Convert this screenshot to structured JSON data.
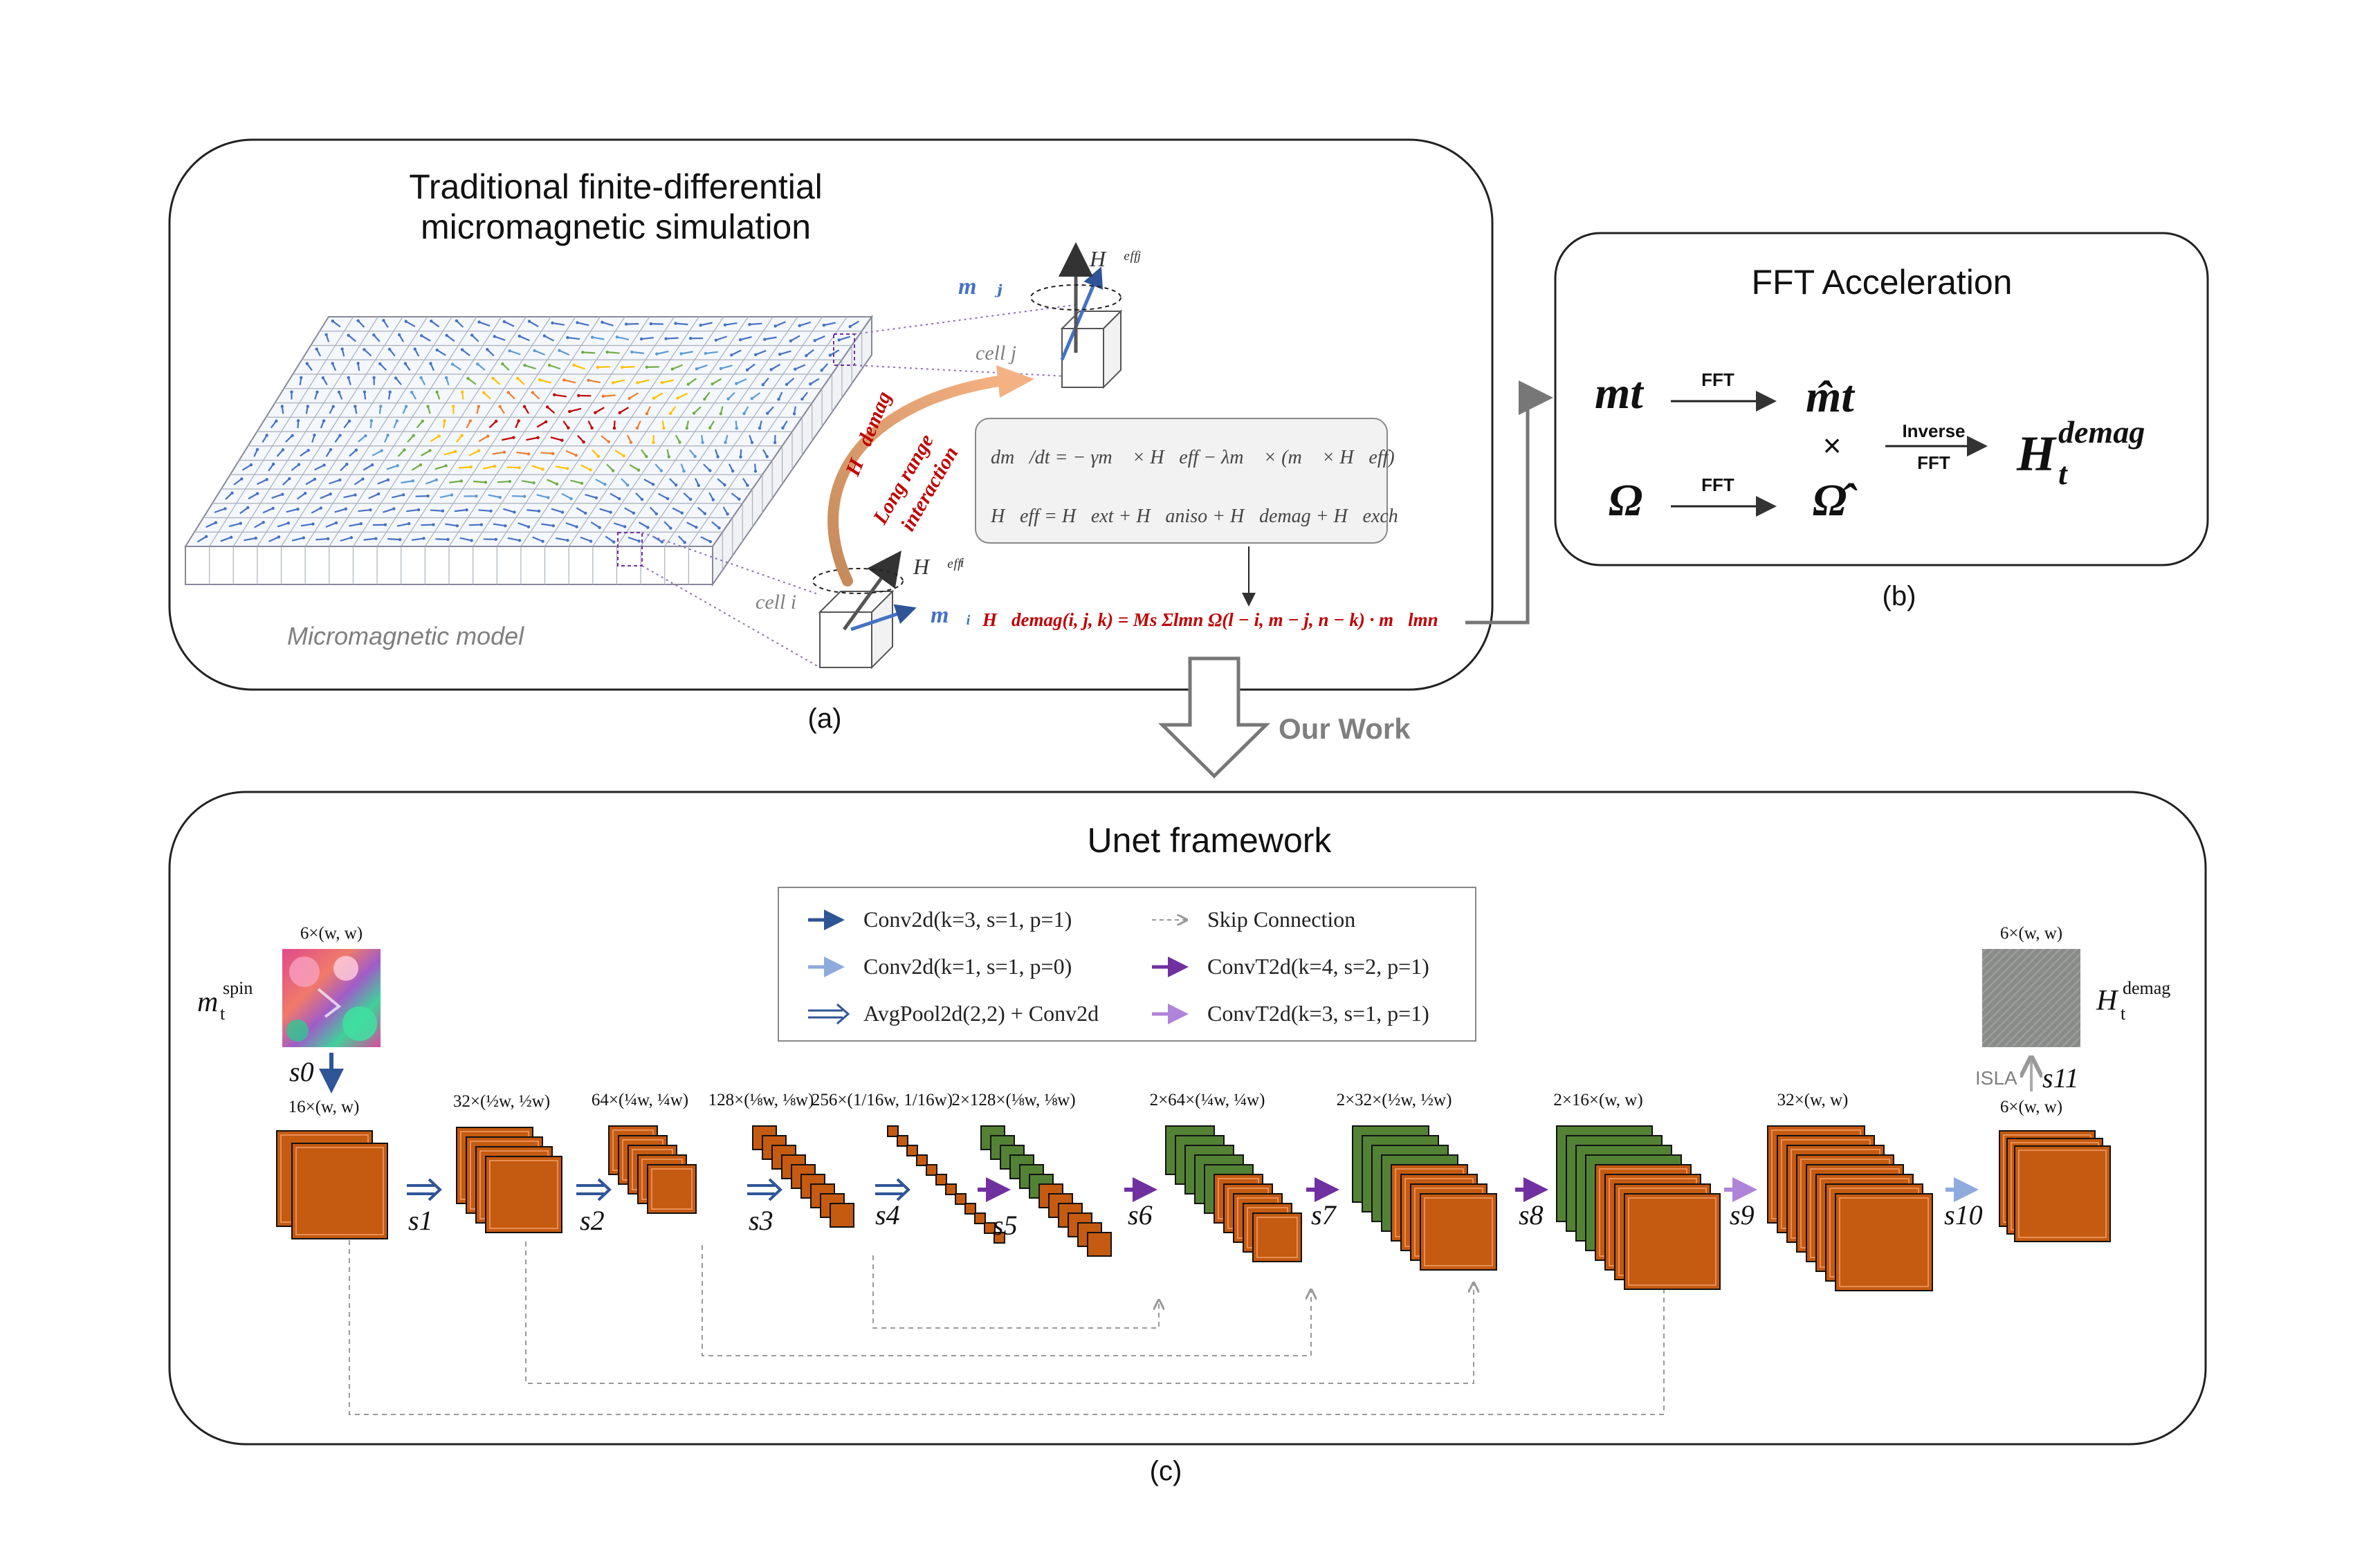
{
  "panel_a": {
    "title_line1": "Traditional finite-differential",
    "title_line2": "micromagnetic simulation",
    "model_label": "Micromagnetic model",
    "cell_i": "cell i",
    "cell_j": "cell j",
    "mj": "m⃗ⱼ",
    "mi": "m⃗ᵢ",
    "heff_j": "H⃗ᵉᶠᶠʲ",
    "heff_i": "H⃗ᵉᶠᶠⁱ",
    "h_demag_label": "H⃗demag",
    "long_range_1": "Long range",
    "long_range_2": "interaction",
    "llg_eq": "dm⃗/dt = − γm⃗ × H⃗eff − λm⃗ × (m⃗ × H⃗eff)",
    "heff_eq": "H⃗eff = H⃗ext + H⃗aniso + H⃗demag + H⃗exch",
    "demag_eq": "H⃗demag(i, j, k) = Ms Σlmn Ω(l − i, m − j, n − k) · m⃗lmn",
    "caption": "(a)"
  },
  "panel_b": {
    "title": "FFT Acceleration",
    "m_t": "mt",
    "omega": "Ω",
    "m_hat": "m̂t",
    "omega_hat": "Ω̂",
    "fft1": "FFT",
    "fft2": "FFT",
    "times": "×",
    "inverse_1": "Inverse",
    "inverse_2": "FFT",
    "h_out": "H",
    "h_out_sup": "demag",
    "h_out_sub": "t",
    "caption": "(b)"
  },
  "our_work": "Our Work",
  "panel_c": {
    "title": "Unet framework",
    "caption": "(c)",
    "legend": [
      {
        "label": "Conv2d(k=3, s=1, p=1)",
        "color": "#2f5597",
        "style": "solid"
      },
      {
        "label": "Conv2d(k=1, s=1, p=0)",
        "color": "#8faadc",
        "style": "solid"
      },
      {
        "label": "AvgPool2d(2,2) + Conv2d",
        "color": "#2f5597",
        "style": "double"
      },
      {
        "label": "Skip Connection",
        "color": "#999999",
        "style": "dashed"
      },
      {
        "label": "ConvT2d(k=4, s=2, p=1)",
        "color": "#7030a0",
        "style": "solid"
      },
      {
        "label": "ConvT2d(k=3, s=1, p=1)",
        "color": "#b084d8",
        "style": "solid"
      }
    ],
    "input_label": "m",
    "input_sup": "spin",
    "input_sub": "t",
    "input_dim": "6×(w, w)",
    "output_label": "H",
    "output_sup": "demag",
    "output_sub": "t",
    "output_dim": "6×(w, w)",
    "isla": "ISLA",
    "s0": "s0",
    "s11": "s11",
    "stages": [
      {
        "dim": "16×(w, w)",
        "s": "s1"
      },
      {
        "dim": "32×(½w, ½w)",
        "s": "s2"
      },
      {
        "dim": "64×(¼w, ¼w)",
        "s": "s3"
      },
      {
        "dim": "128×(⅛w, ⅛w)",
        "s": "s4"
      },
      {
        "dim": "256×(1/16w, 1/16w)",
        "s": "s5"
      },
      {
        "dim": "2×128×(⅛w, ⅛w)",
        "s": "s6"
      },
      {
        "dim": "2×64×(¼w, ¼w)",
        "s": "s7"
      },
      {
        "dim": "2×32×(½w, ½w)",
        "s": "s8"
      },
      {
        "dim": "2×16×(w, w)",
        "s": "s9"
      },
      {
        "dim": "32×(w, w)",
        "s": "s10"
      },
      {
        "dim": "6×(w, w)",
        "s": ""
      }
    ]
  },
  "colors": {
    "orange": "#c55a11",
    "green": "#548235",
    "dark_blue": "#2f5597",
    "light_blue": "#8faadc",
    "purple": "#7030a0",
    "light_purple": "#b084d8",
    "demag_red": "#c00000"
  }
}
